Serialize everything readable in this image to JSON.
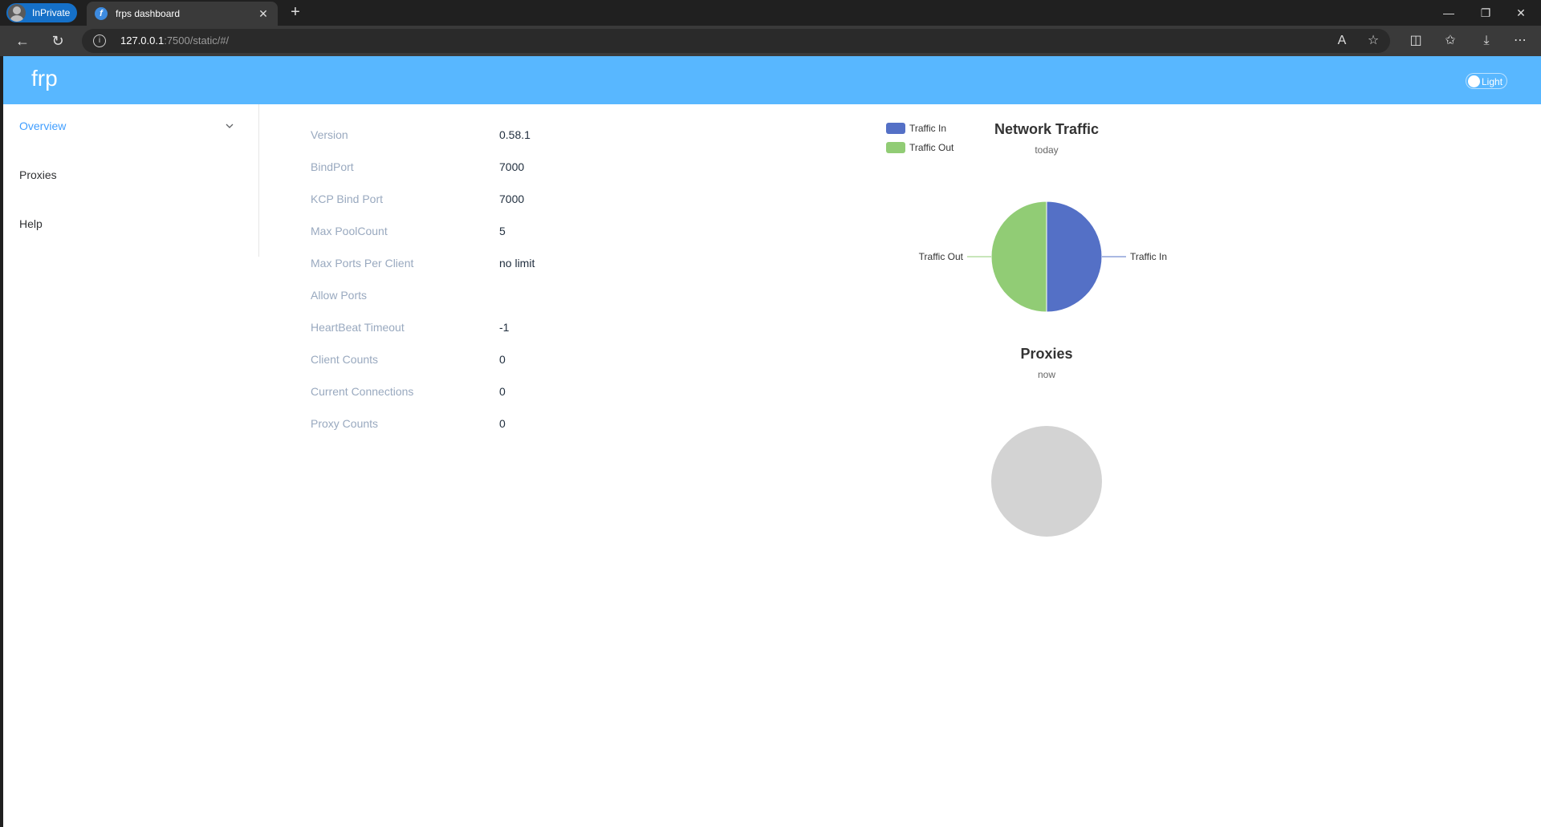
{
  "browser": {
    "inprivate_label": "InPrivate",
    "tab_title": "frps dashboard",
    "url_host": "127.0.0.1",
    "url_rest": ":7500/static/#/"
  },
  "header": {
    "brand": "frp",
    "theme_label": "Light"
  },
  "sidebar": {
    "items": [
      {
        "label": "Overview",
        "active": true
      },
      {
        "label": "Proxies",
        "active": false
      },
      {
        "label": "Help",
        "active": false
      }
    ]
  },
  "server_info": {
    "rows": [
      {
        "label": "Version",
        "value": "0.58.1"
      },
      {
        "label": "BindPort",
        "value": "7000"
      },
      {
        "label": "KCP Bind Port",
        "value": "7000"
      },
      {
        "label": "Max PoolCount",
        "value": "5"
      },
      {
        "label": "Max Ports Per Client",
        "value": "no limit"
      },
      {
        "label": "Allow Ports",
        "value": ""
      },
      {
        "label": "HeartBeat Timeout",
        "value": "-1"
      },
      {
        "label": "Client Counts",
        "value": "0"
      },
      {
        "label": "Current Connections",
        "value": "0"
      },
      {
        "label": "Proxy Counts",
        "value": "0"
      }
    ]
  },
  "chart_data": [
    {
      "type": "pie",
      "title": "Network Traffic",
      "subtitle": "today",
      "legend": [
        "Traffic In",
        "Traffic Out"
      ],
      "legend_position": "top-left",
      "series": [
        {
          "name": "Traffic In",
          "value": 50,
          "color": "#5470c6"
        },
        {
          "name": "Traffic Out",
          "value": 50,
          "color": "#91cc75"
        }
      ]
    },
    {
      "type": "pie",
      "title": "Proxies",
      "subtitle": "now",
      "series": [],
      "empty_color": "#d3d3d3"
    }
  ]
}
